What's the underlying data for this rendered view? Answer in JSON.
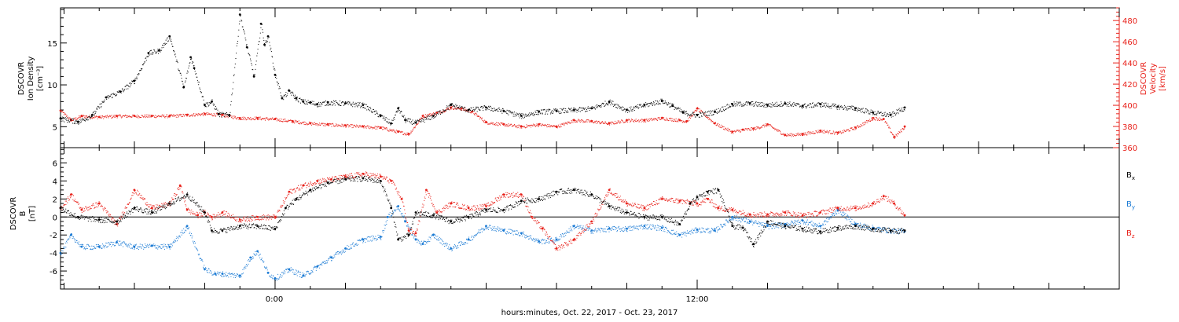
{
  "colors": {
    "black": "#000000",
    "red": "#e8211a",
    "blue": "#1a7ad4"
  },
  "x_axis": {
    "title": "hours:minutes, Oct. 22, 2017 - Oct. 23, 2017",
    "tick_labels": [
      "0:00",
      "12:00"
    ]
  },
  "panels": {
    "top": {
      "left_label": [
        "DSCOVR",
        "Ion Density",
        "[cm⁻³]"
      ],
      "right_label": [
        "DSCOVR",
        "Velocity",
        "[km/s]"
      ]
    },
    "bottom": {
      "left_label": [
        "DSCOVR",
        "B",
        "[nT]"
      ],
      "legend": [
        {
          "name": "Bx",
          "base": "B",
          "sub": "x",
          "color": "#000000"
        },
        {
          "name": "By",
          "base": "B",
          "sub": "y",
          "color": "#1a7ad4"
        },
        {
          "name": "Bz",
          "base": "B",
          "sub": "z",
          "color": "#e8211a"
        }
      ]
    }
  },
  "chart_data": [
    {
      "type": "scatter",
      "title": "",
      "xlabel": "hours:minutes, Oct. 22, 2017 - Oct. 23, 2017",
      "x_unit": "hours relative to 2017-10-22 00:00",
      "xlim": [
        -6.1,
        24.0
      ],
      "y_left": {
        "label": "DSCOVR Ion Density [cm-3]",
        "lim": [
          2.5,
          19.2
        ],
        "ticks": [
          5,
          10,
          15
        ]
      },
      "y_right": {
        "label": "DSCOVR Velocity [km/s]",
        "lim": [
          360,
          492
        ],
        "ticks": [
          360,
          380,
          400,
          420,
          440,
          460,
          480
        ]
      },
      "series": [
        {
          "name": "Ion Density",
          "axis": "left",
          "color": "#000000",
          "x": [
            -6.1,
            -5.6,
            -5.2,
            -4.8,
            -4.4,
            -4.0,
            -3.6,
            -3.3,
            -3.0,
            -2.6,
            -2.4,
            -2.3,
            -2.0,
            -1.8,
            -1.6,
            -1.3,
            -1.0,
            -0.8,
            -0.6,
            -0.4,
            -0.3,
            -0.2,
            0.0,
            0.2,
            0.4,
            0.6,
            0.8,
            1.0,
            1.2,
            1.5,
            2.0,
            2.5,
            3.0,
            3.3,
            3.5,
            3.7,
            4.0,
            4.5,
            5.0,
            5.5,
            6.0,
            6.5,
            7.0,
            7.5,
            8.0,
            8.5,
            9.0,
            9.5,
            10.0,
            10.5,
            11.0,
            11.3,
            11.6,
            12.0,
            12.5,
            13.0,
            13.5,
            14.0,
            14.5,
            15.0,
            15.5,
            16.0,
            16.5,
            17.0,
            17.5,
            17.9
          ],
          "values": [
            6.0,
            5.6,
            6.4,
            8.5,
            9.2,
            10.5,
            13.8,
            14.1,
            15.8,
            9.7,
            13.3,
            12.0,
            7.6,
            8.0,
            6.5,
            6.4,
            18.4,
            14.5,
            11.0,
            17.3,
            14.8,
            15.8,
            11.2,
            8.4,
            9.3,
            8.4,
            8.0,
            7.9,
            7.7,
            7.9,
            7.8,
            7.6,
            6.3,
            5.4,
            7.2,
            5.8,
            5.5,
            6.3,
            7.6,
            7.0,
            7.3,
            6.9,
            6.3,
            6.8,
            6.9,
            7.0,
            7.2,
            8.0,
            7.0,
            7.6,
            8.1,
            7.5,
            6.7,
            6.4,
            6.8,
            7.7,
            7.8,
            7.6,
            7.8,
            7.5,
            7.7,
            7.4,
            7.2,
            6.7,
            6.4,
            7.3
          ]
        },
        {
          "name": "Velocity",
          "axis": "right",
          "color": "#e8211a",
          "x": [
            -6.1,
            -5.8,
            -5.5,
            -5.0,
            -4.5,
            -4.0,
            -3.5,
            -3.0,
            -2.5,
            -2.0,
            -1.5,
            -1.0,
            -0.5,
            0.0,
            0.5,
            1.0,
            1.5,
            2.0,
            2.5,
            3.0,
            3.5,
            3.8,
            4.2,
            4.6,
            5.0,
            5.3,
            5.6,
            6.0,
            6.5,
            7.0,
            7.5,
            8.0,
            8.5,
            9.0,
            9.5,
            10.0,
            10.5,
            11.0,
            11.5,
            11.7,
            12.0,
            12.5,
            13.0,
            13.3,
            13.6,
            14.0,
            14.5,
            15.0,
            15.5,
            16.0,
            16.5,
            17.0,
            17.3,
            17.6,
            17.9
          ],
          "values": [
            395,
            386,
            390,
            389,
            390,
            390,
            390,
            390,
            391,
            392,
            391,
            388,
            388,
            387,
            385,
            383,
            382,
            381,
            380,
            379,
            375,
            373,
            390,
            393,
            398,
            397,
            394,
            384,
            382,
            380,
            382,
            380,
            386,
            385,
            383,
            386,
            386,
            388,
            386,
            385,
            397,
            383,
            375,
            377,
            378,
            382,
            372,
            373,
            376,
            374,
            379,
            388,
            387,
            370,
            380
          ]
        }
      ]
    },
    {
      "type": "scatter",
      "title": "",
      "xlabel": "hours:minutes, Oct. 22, 2017 - Oct. 23, 2017",
      "x_unit": "hours relative to 2017-10-22 00:00",
      "xlim": [
        -6.1,
        24.0
      ],
      "ylabel": "DSCOVR B [nT]",
      "ylim": [
        -8.0,
        7.7
      ],
      "yticks": [
        -6,
        -4,
        -2,
        0,
        2,
        4,
        6
      ],
      "zero_line": true,
      "series": [
        {
          "name": "Bx",
          "color": "#000000",
          "x": [
            -6.1,
            -5.6,
            -5.0,
            -4.5,
            -4.0,
            -3.5,
            -3.0,
            -2.5,
            -2.0,
            -1.8,
            -1.5,
            -1.0,
            -0.5,
            0.0,
            0.3,
            0.6,
            1.0,
            1.5,
            2.0,
            2.5,
            3.0,
            3.3,
            3.5,
            3.8,
            4.0,
            4.5,
            5.0,
            5.5,
            6.0,
            6.5,
            7.0,
            7.5,
            8.0,
            8.5,
            9.0,
            9.5,
            10.0,
            10.5,
            11.0,
            11.5,
            11.8,
            12.0,
            12.3,
            12.6,
            13.0,
            13.3,
            13.6,
            14.0,
            14.5,
            15.0,
            15.5,
            16.0,
            16.5,
            17.0,
            17.5,
            17.9
          ],
          "values": [
            1.0,
            0.0,
            -0.3,
            -0.5,
            1.0,
            0.5,
            1.5,
            2.5,
            0.5,
            -1.5,
            -1.5,
            -1.0,
            -1.0,
            -1.3,
            1.0,
            2.0,
            3.0,
            3.8,
            4.2,
            4.3,
            4.0,
            1.0,
            -2.5,
            -2.0,
            0.5,
            0.2,
            -0.5,
            0.0,
            0.8,
            0.8,
            1.8,
            2.0,
            2.8,
            3.0,
            2.5,
            1.2,
            0.5,
            0.0,
            0.0,
            -0.8,
            1.5,
            2.2,
            2.8,
            3.0,
            -1.0,
            -1.2,
            -3.0,
            -0.5,
            -1.0,
            -1.3,
            -1.6,
            -1.2,
            -1.0,
            -1.3,
            -1.5,
            -1.5
          ]
        },
        {
          "name": "By",
          "color": "#1a7ad4",
          "x": [
            -6.1,
            -5.8,
            -5.5,
            -5.0,
            -4.5,
            -4.0,
            -3.5,
            -3.0,
            -2.5,
            -2.0,
            -1.7,
            -1.5,
            -1.0,
            -0.7,
            -0.5,
            -0.2,
            0.0,
            0.4,
            0.8,
            1.2,
            1.6,
            2.0,
            2.5,
            3.0,
            3.2,
            3.5,
            3.7,
            4.0,
            4.2,
            4.5,
            5.0,
            5.5,
            6.0,
            6.5,
            7.0,
            7.5,
            8.0,
            8.5,
            9.0,
            9.5,
            10.0,
            10.5,
            11.0,
            11.5,
            12.0,
            12.5,
            13.0,
            13.5,
            14.0,
            14.5,
            15.0,
            15.5,
            16.0,
            16.5,
            17.0,
            17.5,
            17.9
          ],
          "values": [
            -4.0,
            -2.0,
            -3.3,
            -3.3,
            -2.8,
            -3.3,
            -3.2,
            -3.3,
            -1.0,
            -5.8,
            -6.3,
            -6.3,
            -6.5,
            -4.5,
            -3.8,
            -6.2,
            -6.8,
            -5.8,
            -6.5,
            -5.5,
            -4.5,
            -3.5,
            -2.5,
            -2.2,
            0.0,
            1.2,
            -0.5,
            -2.5,
            -3.0,
            -2.0,
            -3.5,
            -2.5,
            -1.0,
            -1.5,
            -1.8,
            -2.7,
            -2.5,
            -1.0,
            -1.5,
            -1.3,
            -1.3,
            -1.0,
            -1.2,
            -2.0,
            -1.4,
            -1.5,
            0.0,
            -0.5,
            -1.0,
            -0.8,
            -0.4,
            -1.0,
            0.8,
            -0.8,
            -1.2,
            -1.5,
            -1.6
          ]
        },
        {
          "name": "Bz",
          "color": "#e8211a",
          "x": [
            -6.1,
            -5.8,
            -5.5,
            -5.0,
            -4.5,
            -4.0,
            -3.5,
            -3.0,
            -2.7,
            -2.5,
            -2.2,
            -2.0,
            -1.8,
            -1.5,
            -1.0,
            -0.5,
            0.0,
            0.4,
            0.8,
            1.2,
            1.6,
            2.0,
            2.5,
            3.0,
            3.3,
            3.6,
            3.8,
            4.0,
            4.3,
            4.6,
            5.0,
            5.5,
            6.0,
            6.5,
            7.0,
            7.3,
            7.6,
            8.0,
            8.5,
            9.0,
            9.5,
            10.0,
            10.5,
            11.0,
            11.5,
            12.0,
            12.3,
            12.6,
            13.0,
            13.5,
            14.0,
            14.5,
            15.0,
            15.5,
            16.0,
            16.5,
            17.0,
            17.3,
            17.6,
            17.9
          ],
          "values": [
            1.0,
            2.5,
            0.8,
            1.5,
            -0.8,
            3.0,
            1.0,
            1.5,
            3.5,
            0.8,
            0.2,
            0.5,
            0.0,
            0.5,
            -0.3,
            0.0,
            0.0,
            2.8,
            3.5,
            4.0,
            4.2,
            4.5,
            4.8,
            4.5,
            4.0,
            2.0,
            -1.5,
            -1.8,
            3.0,
            0.5,
            1.5,
            1.0,
            1.2,
            2.5,
            2.5,
            0.0,
            -1.3,
            -3.5,
            -2.5,
            -0.5,
            3.0,
            1.5,
            1.0,
            2.0,
            1.8,
            1.5,
            2.0,
            1.0,
            0.8,
            0.3,
            0.3,
            0.5,
            0.2,
            0.5,
            1.0,
            1.0,
            1.5,
            2.3,
            1.5,
            0.2
          ]
        }
      ]
    }
  ]
}
